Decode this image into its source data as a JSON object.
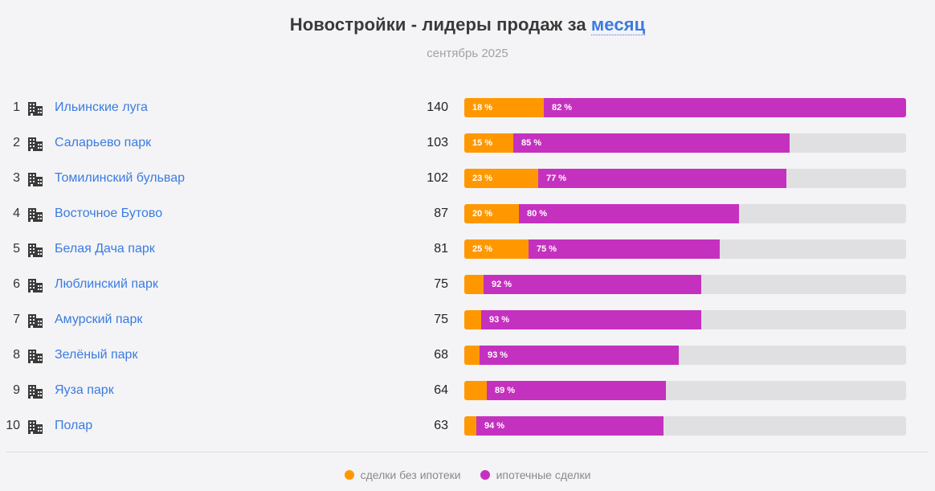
{
  "header": {
    "title_prefix": "Новостройки - лидеры продаж за",
    "period_link": "месяц",
    "subtitle": "сентябрь 2025"
  },
  "colors": {
    "cash": "#ff9800",
    "mortgage": "#c531bf",
    "link": "#3b7be0",
    "track": "#e0e0e2"
  },
  "legend": {
    "cash_label": "сделки без ипотеки",
    "mortgage_label": "ипотечные сделки"
  },
  "chart_data": {
    "type": "bar",
    "orientation": "horizontal",
    "stacked": true,
    "title": "Новостройки - лидеры продаж за месяц",
    "subtitle": "сентябрь 2025",
    "xlim": [
      0,
      140
    ],
    "categories": [
      "Ильинские луга",
      "Саларьево парк",
      "Томилинский бульвар",
      "Восточное Бутово",
      "Белая Дача парк",
      "Люблинский парк",
      "Амурский парк",
      "Зелёный парк",
      "Яуза парк",
      "Полар"
    ],
    "ranks": [
      "1",
      "2",
      "3",
      "4",
      "5",
      "6",
      "7",
      "8",
      "9",
      "10"
    ],
    "totals": [
      140,
      103,
      102,
      87,
      81,
      75,
      75,
      68,
      64,
      63
    ],
    "series": [
      {
        "name": "сделки без ипотеки",
        "percent": [
          18,
          15,
          23,
          20,
          25,
          8,
          7,
          7,
          11,
          6
        ],
        "labels": [
          "18 %",
          "15 %",
          "23 %",
          "20 %",
          "25 %",
          "",
          "",
          "",
          "",
          ""
        ]
      },
      {
        "name": "ипотечные сделки",
        "percent": [
          82,
          85,
          77,
          80,
          75,
          92,
          93,
          93,
          89,
          94
        ],
        "labels": [
          "82 %",
          "85 %",
          "77 %",
          "80 %",
          "75 %",
          "92 %",
          "93 %",
          "93 %",
          "89 %",
          "94 %"
        ]
      }
    ],
    "legend_position": "bottom-center"
  }
}
